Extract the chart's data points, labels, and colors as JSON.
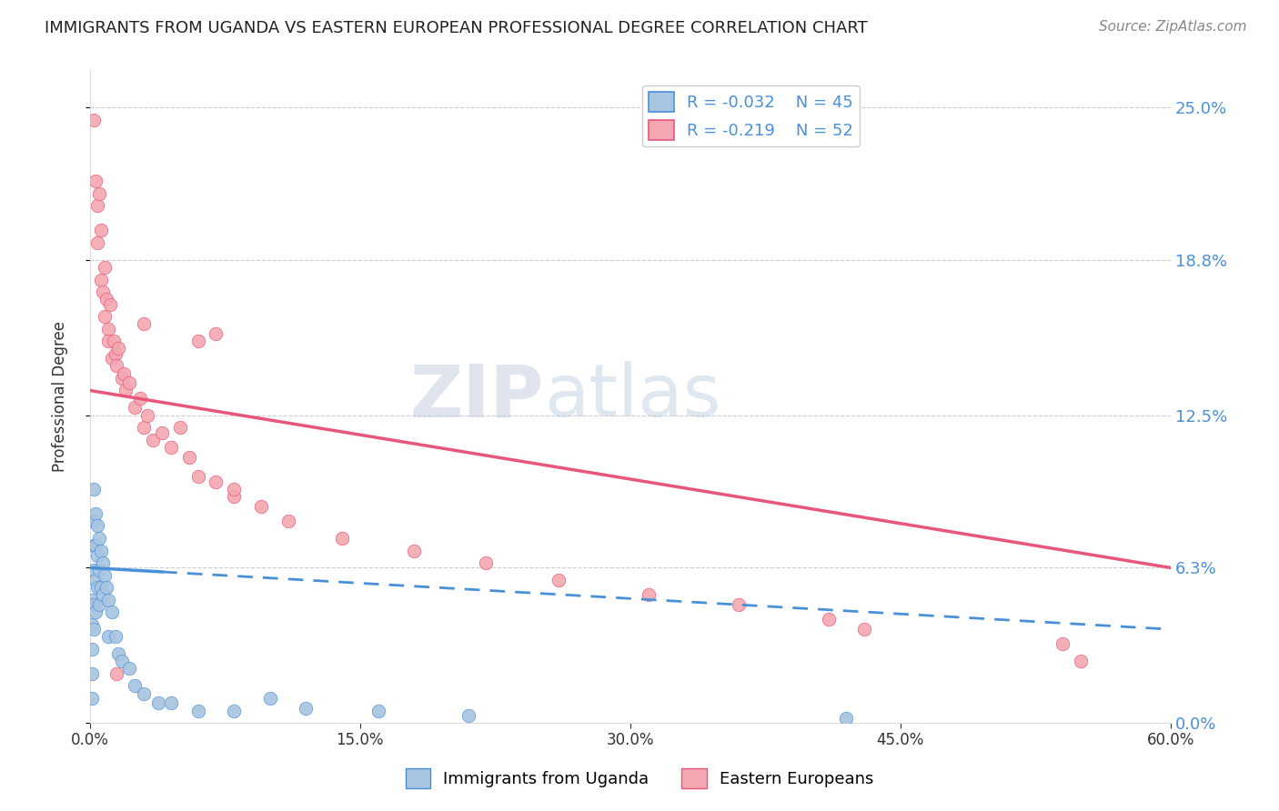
{
  "title": "IMMIGRANTS FROM UGANDA VS EASTERN EUROPEAN PROFESSIONAL DEGREE CORRELATION CHART",
  "source": "Source: ZipAtlas.com",
  "ylabel": "Professional Degree",
  "xlabel_ticks": [
    "0.0%",
    "15.0%",
    "30.0%",
    "45.0%",
    "60.0%"
  ],
  "xlabel_vals": [
    0.0,
    0.15,
    0.3,
    0.45,
    0.6
  ],
  "ytick_labels": [
    "0.0%",
    "6.3%",
    "12.5%",
    "18.8%",
    "25.0%"
  ],
  "ytick_vals": [
    0.0,
    0.063,
    0.125,
    0.188,
    0.25
  ],
  "xlim": [
    0.0,
    0.6
  ],
  "ylim": [
    0.0,
    0.265
  ],
  "legend_r1": "R = -0.032",
  "legend_n1": "N = 45",
  "legend_r2": "R = -0.219",
  "legend_n2": "N = 52",
  "color_uganda": "#a8c4e0",
  "color_eastern": "#f4a7b0",
  "trendline_uganda_color": "#4a90d9",
  "trendline_eastern_color": "#e8567a",
  "watermark_zip": "ZIP",
  "watermark_atlas": "atlas",
  "uganda_trendline_x": [
    0.0,
    0.6
  ],
  "uganda_trendline_y": [
    0.063,
    0.038
  ],
  "eastern_trendline_x": [
    0.0,
    0.6
  ],
  "eastern_trendline_y": [
    0.135,
    0.063
  ],
  "uganda_x": [
    0.001,
    0.001,
    0.001,
    0.001,
    0.001,
    0.002,
    0.002,
    0.002,
    0.002,
    0.002,
    0.002,
    0.003,
    0.003,
    0.003,
    0.003,
    0.004,
    0.004,
    0.004,
    0.005,
    0.005,
    0.005,
    0.006,
    0.006,
    0.007,
    0.007,
    0.008,
    0.009,
    0.01,
    0.01,
    0.012,
    0.014,
    0.016,
    0.018,
    0.022,
    0.025,
    0.03,
    0.038,
    0.045,
    0.06,
    0.08,
    0.1,
    0.12,
    0.16,
    0.21,
    0.42
  ],
  "uganda_y": [
    0.05,
    0.04,
    0.03,
    0.02,
    0.01,
    0.095,
    0.082,
    0.072,
    0.062,
    0.048,
    0.038,
    0.085,
    0.072,
    0.058,
    0.045,
    0.08,
    0.068,
    0.055,
    0.075,
    0.062,
    0.048,
    0.07,
    0.055,
    0.065,
    0.052,
    0.06,
    0.055,
    0.05,
    0.035,
    0.045,
    0.035,
    0.028,
    0.025,
    0.022,
    0.015,
    0.012,
    0.008,
    0.008,
    0.005,
    0.005,
    0.01,
    0.006,
    0.005,
    0.003,
    0.002
  ],
  "eastern_x": [
    0.002,
    0.003,
    0.004,
    0.004,
    0.005,
    0.006,
    0.006,
    0.007,
    0.008,
    0.008,
    0.009,
    0.01,
    0.01,
    0.011,
    0.012,
    0.013,
    0.014,
    0.015,
    0.016,
    0.018,
    0.019,
    0.02,
    0.022,
    0.025,
    0.028,
    0.03,
    0.032,
    0.035,
    0.04,
    0.045,
    0.05,
    0.055,
    0.06,
    0.07,
    0.08,
    0.095,
    0.11,
    0.14,
    0.18,
    0.22,
    0.26,
    0.31,
    0.36,
    0.41,
    0.43,
    0.54,
    0.55,
    0.06,
    0.03,
    0.015,
    0.07,
    0.08
  ],
  "eastern_y": [
    0.245,
    0.22,
    0.21,
    0.195,
    0.215,
    0.18,
    0.2,
    0.175,
    0.185,
    0.165,
    0.172,
    0.16,
    0.155,
    0.17,
    0.148,
    0.155,
    0.15,
    0.145,
    0.152,
    0.14,
    0.142,
    0.135,
    0.138,
    0.128,
    0.132,
    0.12,
    0.125,
    0.115,
    0.118,
    0.112,
    0.12,
    0.108,
    0.1,
    0.098,
    0.092,
    0.088,
    0.082,
    0.075,
    0.07,
    0.065,
    0.058,
    0.052,
    0.048,
    0.042,
    0.038,
    0.032,
    0.025,
    0.155,
    0.162,
    0.02,
    0.158,
    0.095
  ]
}
